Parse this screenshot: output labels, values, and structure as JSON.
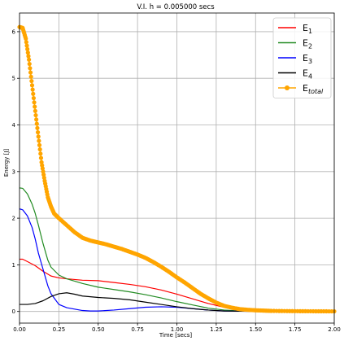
{
  "chart_data": {
    "type": "line",
    "title": "V.I. h = 0.005000 secs",
    "xlabel": "Time [secs]",
    "ylabel": "Energy [J]",
    "xlim": [
      0,
      2.0
    ],
    "ylim": [
      -0.25,
      6.4
    ],
    "grid": true,
    "legend_position": "top-right",
    "xticks": [
      "0.00",
      "0.25",
      "0.50",
      "0.75",
      "1.00",
      "1.25",
      "1.50",
      "1.75",
      "2.00"
    ],
    "yticks": [
      "0",
      "1",
      "2",
      "3",
      "4",
      "5",
      "6"
    ],
    "series": [
      {
        "name": "E",
        "subscript": "1",
        "italic_sub": false,
        "color": "#ff0000",
        "marker": false,
        "x": [
          0,
          0.02,
          0.05,
          0.1,
          0.15,
          0.2,
          0.25,
          0.3,
          0.4,
          0.5,
          0.6,
          0.7,
          0.8,
          0.9,
          1.0,
          1.1,
          1.2,
          1.3,
          1.4,
          1.5,
          1.6,
          1.75,
          2.0
        ],
        "y": [
          1.12,
          1.12,
          1.07,
          0.98,
          0.86,
          0.76,
          0.72,
          0.7,
          0.67,
          0.66,
          0.62,
          0.58,
          0.53,
          0.46,
          0.37,
          0.27,
          0.17,
          0.09,
          0.04,
          0.015,
          0.006,
          0.002,
          0.0
        ]
      },
      {
        "name": "E",
        "subscript": "2",
        "italic_sub": false,
        "color": "#228b22",
        "marker": false,
        "x": [
          0,
          0.02,
          0.05,
          0.08,
          0.1,
          0.12,
          0.15,
          0.18,
          0.2,
          0.25,
          0.3,
          0.4,
          0.5,
          0.6,
          0.7,
          0.8,
          0.9,
          1.0,
          1.1,
          1.2,
          1.3,
          1.4,
          1.5,
          1.75,
          2.0
        ],
        "y": [
          2.65,
          2.64,
          2.52,
          2.3,
          2.1,
          1.85,
          1.45,
          1.1,
          0.95,
          0.78,
          0.7,
          0.6,
          0.52,
          0.47,
          0.42,
          0.36,
          0.29,
          0.21,
          0.14,
          0.07,
          0.03,
          0.01,
          0.004,
          0.001,
          0.0
        ]
      },
      {
        "name": "E",
        "subscript": "3",
        "italic_sub": false,
        "color": "#0000ff",
        "marker": false,
        "x": [
          0,
          0.02,
          0.05,
          0.08,
          0.1,
          0.12,
          0.15,
          0.18,
          0.2,
          0.25,
          0.3,
          0.35,
          0.4,
          0.45,
          0.5,
          0.6,
          0.7,
          0.8,
          0.9,
          1.0,
          1.1,
          1.2,
          1.3,
          1.4,
          1.5,
          2.0
        ],
        "y": [
          2.2,
          2.18,
          2.05,
          1.8,
          1.55,
          1.25,
          0.9,
          0.55,
          0.38,
          0.15,
          0.08,
          0.05,
          0.02,
          0.01,
          0.01,
          0.03,
          0.06,
          0.09,
          0.1,
          0.09,
          0.06,
          0.03,
          0.01,
          0.004,
          0.001,
          0.0
        ]
      },
      {
        "name": "E",
        "subscript": "4",
        "italic_sub": false,
        "color": "#000000",
        "marker": false,
        "x": [
          0,
          0.05,
          0.1,
          0.15,
          0.2,
          0.25,
          0.3,
          0.35,
          0.4,
          0.5,
          0.6,
          0.7,
          0.8,
          0.9,
          1.0,
          1.1,
          1.2,
          1.3,
          1.4,
          1.5,
          2.0
        ],
        "y": [
          0.15,
          0.15,
          0.17,
          0.23,
          0.32,
          0.38,
          0.4,
          0.37,
          0.33,
          0.3,
          0.28,
          0.25,
          0.2,
          0.15,
          0.1,
          0.06,
          0.03,
          0.01,
          0.005,
          0.002,
          0.0
        ]
      },
      {
        "name": "E",
        "subscript": "total",
        "italic_sub": true,
        "color": "#ffa500",
        "marker": true,
        "x": [
          0,
          0.02,
          0.04,
          0.06,
          0.08,
          0.1,
          0.12,
          0.14,
          0.16,
          0.18,
          0.2,
          0.22,
          0.25,
          0.3,
          0.35,
          0.4,
          0.45,
          0.5,
          0.55,
          0.6,
          0.65,
          0.7,
          0.75,
          0.8,
          0.85,
          0.9,
          0.95,
          1.0,
          1.05,
          1.1,
          1.15,
          1.2,
          1.25,
          1.3,
          1.35,
          1.4,
          1.45,
          1.5,
          1.55,
          1.6,
          1.7,
          1.8,
          1.9,
          2.0
        ],
        "y": [
          6.1,
          6.08,
          5.85,
          5.4,
          4.85,
          4.3,
          3.75,
          3.2,
          2.8,
          2.45,
          2.25,
          2.1,
          2.0,
          1.85,
          1.7,
          1.58,
          1.52,
          1.48,
          1.44,
          1.39,
          1.34,
          1.28,
          1.22,
          1.15,
          1.06,
          0.96,
          0.85,
          0.73,
          0.62,
          0.5,
          0.38,
          0.28,
          0.19,
          0.12,
          0.08,
          0.05,
          0.035,
          0.025,
          0.018,
          0.012,
          0.008,
          0.005,
          0.003,
          0.002
        ]
      }
    ]
  }
}
